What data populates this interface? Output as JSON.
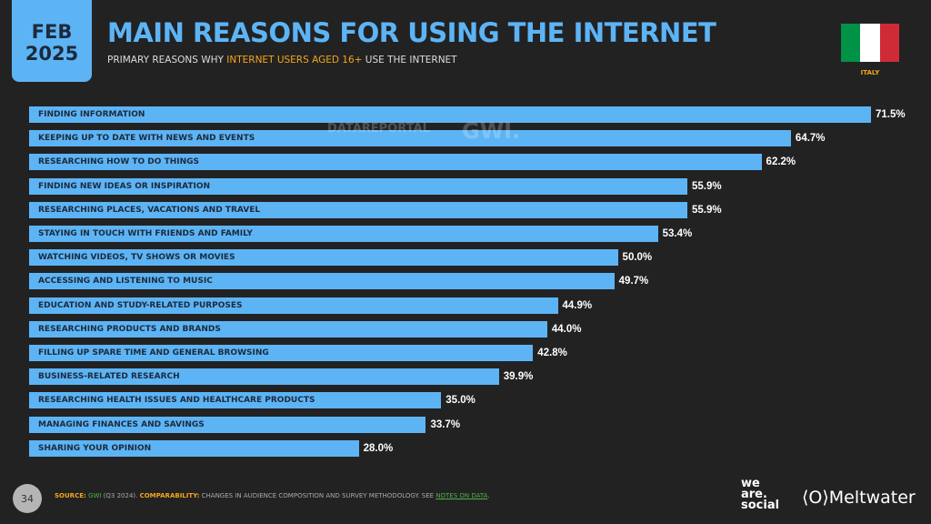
{
  "header": {
    "month": "FEB",
    "year": "2025",
    "title": "MAIN REASONS FOR USING THE INTERNET",
    "subtitle_pre": "PRIMARY REASONS WHY ",
    "subtitle_highlight": "INTERNET USERS AGED 16+",
    "subtitle_post": " USE THE INTERNET",
    "country": "ITALY",
    "flag_colors": [
      "#009246",
      "#ffffff",
      "#ce2b37"
    ]
  },
  "watermark": {
    "datareportal": "DATAREPORTAL",
    "gwi": "GWI."
  },
  "chart_data": {
    "type": "bar",
    "orientation": "horizontal",
    "bar_color": "#5db4f5",
    "categories": [
      "FINDING INFORMATION",
      "KEEPING UP TO DATE WITH NEWS AND EVENTS",
      "RESEARCHING HOW TO DO THINGS",
      "FINDING NEW IDEAS OR INSPIRATION",
      "RESEARCHING PLACES, VACATIONS AND TRAVEL",
      "STAYING IN TOUCH WITH FRIENDS AND FAMILY",
      "WATCHING VIDEOS, TV SHOWS OR MOVIES",
      "ACCESSING AND LISTENING TO MUSIC",
      "EDUCATION AND STUDY-RELATED PURPOSES",
      "RESEARCHING PRODUCTS AND BRANDS",
      "FILLING UP SPARE TIME AND GENERAL BROWSING",
      "BUSINESS-RELATED RESEARCH",
      "RESEARCHING HEALTH ISSUES AND HEALTHCARE PRODUCTS",
      "MANAGING FINANCES AND SAVINGS",
      "SHARING YOUR OPINION"
    ],
    "values": [
      71.5,
      64.7,
      62.2,
      55.9,
      55.9,
      53.4,
      50.0,
      49.7,
      44.9,
      44.0,
      42.8,
      39.9,
      35.0,
      33.7,
      28.0
    ],
    "value_labels": [
      "71.5%",
      "64.7%",
      "62.2%",
      "55.9%",
      "55.9%",
      "53.4%",
      "50.0%",
      "49.7%",
      "44.9%",
      "44.0%",
      "42.8%",
      "39.9%",
      "35.0%",
      "33.7%",
      "28.0%"
    ]
  },
  "footer": {
    "page": "34",
    "source_label": "SOURCE:",
    "source": "GWI",
    "source_detail": " (Q3 2024). ",
    "comparability_label": "COMPARABILITY:",
    "comparability": " CHANGES IN AUDIENCE COMPOSITION AND SURVEY METHODOLOGY. SEE ",
    "notes_link": "NOTES ON DATA",
    "notes_end": ".",
    "brand1": "we are. social",
    "brand2": "Meltwater"
  }
}
